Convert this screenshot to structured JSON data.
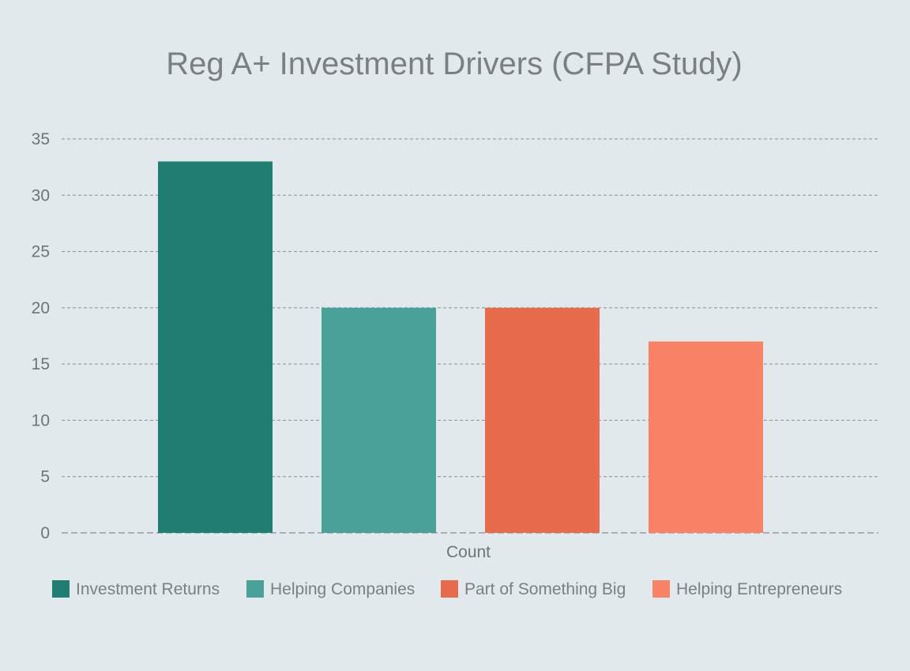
{
  "chart_data": {
    "type": "bar",
    "title": "Reg A+ Investment Drivers (CFPA Study)",
    "xlabel": "Count",
    "ylabel": "",
    "categories": [
      "Count"
    ],
    "ylim": [
      0,
      35
    ],
    "yticks": [
      0,
      5,
      10,
      15,
      20,
      25,
      30,
      35
    ],
    "grid": true,
    "legend_position": "bottom",
    "series": [
      {
        "name": "Investment Returns",
        "values": [
          33
        ],
        "color": "#217e73"
      },
      {
        "name": "Helping Companies",
        "values": [
          20
        ],
        "color": "#49a199"
      },
      {
        "name": "Part of Something Big",
        "values": [
          20
        ],
        "color": "#e76c4e"
      },
      {
        "name": "Helping Entrepreneurs",
        "values": [
          17
        ],
        "color": "#fa8266"
      }
    ]
  }
}
